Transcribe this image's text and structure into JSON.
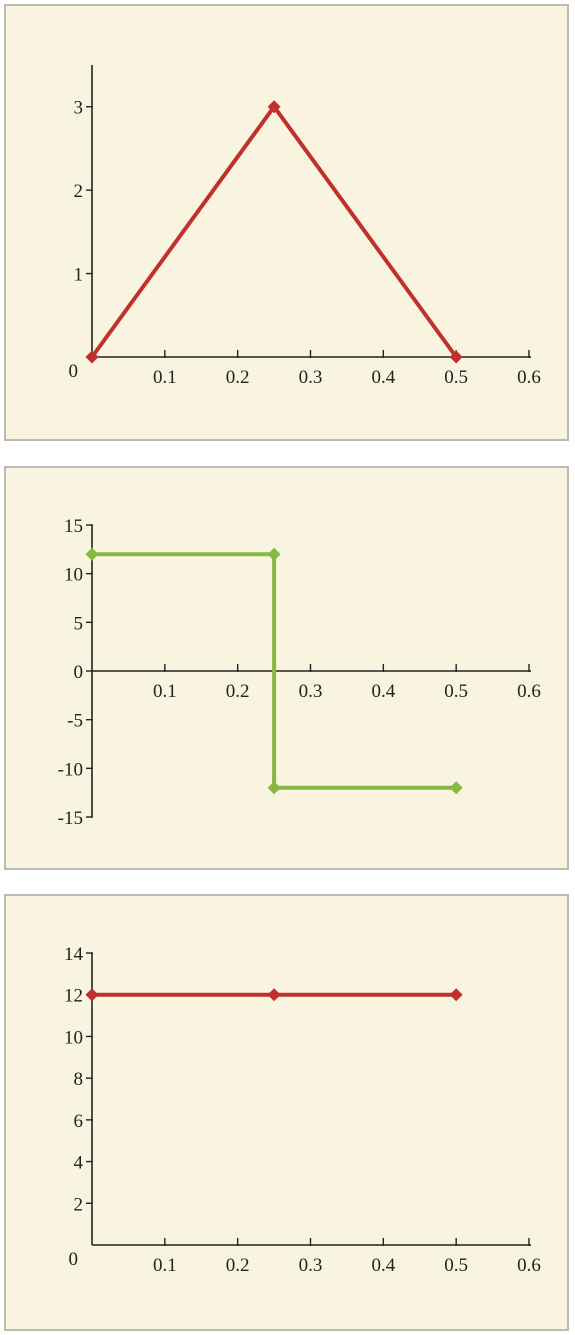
{
  "colors": {
    "panel_background": "#f8f4df",
    "panel_border": "#bdbab0",
    "axis": "#222222",
    "red_series": "#c0312e",
    "green_series": "#86b940"
  },
  "chart_data": [
    {
      "type": "line",
      "title": "",
      "xlabel": "",
      "ylabel": "",
      "xlim": [
        0,
        0.6
      ],
      "ylim": [
        0,
        3.5
      ],
      "grid": false,
      "x_ticks": [
        "0.1",
        "0.2",
        "0.3",
        "0.4",
        "0.5",
        "0.6"
      ],
      "y_ticks": [
        "0",
        "1",
        "2",
        "3"
      ],
      "series": [
        {
          "color": "#c0312e",
          "marker": "diamond",
          "x": [
            0,
            0.25,
            0.5
          ],
          "y": [
            0,
            3,
            0
          ]
        }
      ]
    },
    {
      "type": "line",
      "title": "",
      "xlabel": "",
      "ylabel": "",
      "xlim": [
        0,
        0.6
      ],
      "ylim": [
        -15,
        15
      ],
      "grid": false,
      "x_ticks": [
        "0.1",
        "0.2",
        "0.3",
        "0.4",
        "0.5",
        "0.6"
      ],
      "y_ticks": [
        "15",
        "10",
        "5",
        "0",
        "-5",
        "-10",
        "-15"
      ],
      "series": [
        {
          "color": "#86b940",
          "marker": "diamond",
          "x": [
            0,
            0.25,
            0.25,
            0.5
          ],
          "y": [
            12,
            12,
            -12,
            -12
          ]
        }
      ]
    },
    {
      "type": "line",
      "title": "",
      "xlabel": "",
      "ylabel": "",
      "xlim": [
        0,
        0.6
      ],
      "ylim": [
        0,
        14
      ],
      "grid": false,
      "x_ticks": [
        "0.1",
        "0.2",
        "0.3",
        "0.4",
        "0.5",
        "0.6"
      ],
      "y_ticks": [
        "0",
        "2",
        "4",
        "6",
        "8",
        "10",
        "12",
        "14"
      ],
      "series": [
        {
          "color": "#c0312e",
          "marker": "diamond",
          "x": [
            0,
            0.25,
            0.5
          ],
          "y": [
            12,
            12,
            12
          ]
        }
      ]
    }
  ]
}
